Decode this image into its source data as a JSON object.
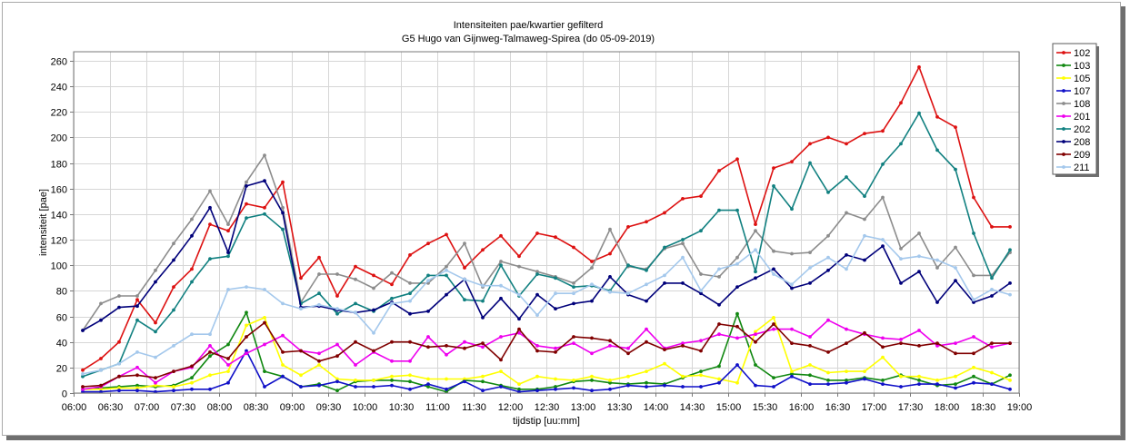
{
  "chart_data": {
    "type": "line",
    "title": "Intensiteiten pae/kwartier gefilterd",
    "subtitle": "G5 Hugo van Gijnweg-Talmaweg-Spirea (do 05-09-2019)",
    "xlabel": "tijdstip [uu:mm]",
    "ylabel": "intensiteit [pae]",
    "xlim": [
      "06:00",
      "19:00"
    ],
    "ylim": [
      0,
      267
    ],
    "x_ticks": [
      "06:00",
      "06:30",
      "07:00",
      "07:30",
      "08:00",
      "08:30",
      "09:00",
      "09:30",
      "10:00",
      "10:30",
      "11:00",
      "11:30",
      "12:00",
      "12:30",
      "13:00",
      "13:30",
      "14:00",
      "14:30",
      "15:00",
      "15:30",
      "16:00",
      "16:30",
      "17:00",
      "17:30",
      "18:00",
      "18:30",
      "19:00"
    ],
    "y_ticks": [
      0,
      20,
      40,
      60,
      80,
      100,
      120,
      140,
      160,
      180,
      200,
      220,
      240,
      260
    ],
    "grid": true,
    "legend": "right",
    "x": [
      "06:07:30",
      "06:22:30",
      "06:37:30",
      "06:52:30",
      "07:07:30",
      "07:22:30",
      "07:37:30",
      "07:52:30",
      "08:07:30",
      "08:22:30",
      "08:37:30",
      "08:52:30",
      "09:07:30",
      "09:22:30",
      "09:37:30",
      "09:52:30",
      "10:07:30",
      "10:22:30",
      "10:37:30",
      "10:52:30",
      "11:07:30",
      "11:22:30",
      "11:37:30",
      "11:52:30",
      "12:07:30",
      "12:22:30",
      "12:37:30",
      "12:52:30",
      "13:07:30",
      "13:22:30",
      "13:37:30",
      "13:52:30",
      "14:07:30",
      "14:22:30",
      "14:37:30",
      "14:52:30",
      "15:07:30",
      "15:22:30",
      "15:37:30",
      "15:52:30",
      "16:07:30",
      "16:22:30",
      "16:37:30",
      "16:52:30",
      "17:07:30",
      "17:22:30",
      "17:37:30",
      "17:52:30",
      "18:07:30",
      "18:22:30",
      "18:37:30",
      "18:52:30"
    ],
    "series": [
      {
        "name": "102",
        "color": "#dd1111",
        "values": [
          18,
          27,
          40,
          73,
          55,
          83,
          97,
          132,
          127,
          148,
          145,
          165,
          90,
          106,
          76,
          99,
          92,
          85,
          108,
          117,
          124,
          98,
          112,
          123,
          107,
          125,
          122,
          114,
          103,
          109,
          130,
          134,
          141,
          152,
          154,
          174,
          183,
          132,
          176,
          181,
          195,
          200,
          195,
          203,
          205,
          227,
          255,
          216,
          208,
          153,
          130,
          130
        ]
      },
      {
        "name": "103",
        "color": "#118811",
        "values": [
          3,
          4,
          5,
          6,
          5,
          6,
          12,
          29,
          38,
          63,
          17,
          13,
          5,
          7,
          2,
          9,
          10,
          10,
          9,
          5,
          1,
          10,
          9,
          6,
          3,
          3,
          5,
          9,
          10,
          8,
          7,
          8,
          7,
          12,
          17,
          21,
          62,
          22,
          12,
          15,
          14,
          10,
          10,
          12,
          10,
          14,
          10,
          6,
          7,
          13,
          7,
          14
        ]
      },
      {
        "name": "105",
        "color": "#ffff00",
        "values": [
          3,
          3,
          4,
          4,
          6,
          5,
          8,
          14,
          17,
          53,
          59,
          22,
          14,
          22,
          11,
          10,
          10,
          13,
          14,
          11,
          11,
          11,
          13,
          17,
          7,
          13,
          11,
          10,
          13,
          10,
          13,
          17,
          23,
          13,
          14,
          11,
          8,
          48,
          59,
          17,
          22,
          16,
          17,
          17,
          28,
          13,
          13,
          10,
          13,
          20,
          16,
          10
        ]
      },
      {
        "name": "107",
        "color": "#1010c8",
        "values": [
          1,
          1,
          2,
          2,
          1,
          2,
          3,
          3,
          8,
          33,
          5,
          13,
          5,
          6,
          9,
          5,
          5,
          6,
          3,
          7,
          3,
          9,
          2,
          5,
          1,
          2,
          3,
          4,
          2,
          3,
          6,
          5,
          6,
          5,
          5,
          8,
          22,
          6,
          5,
          13,
          7,
          7,
          8,
          11,
          7,
          5,
          7,
          7,
          4,
          8,
          7,
          3
        ]
      },
      {
        "name": "108",
        "color": "#8c8c8c",
        "values": [
          49,
          70,
          76,
          76,
          96,
          117,
          136,
          158,
          132,
          165,
          186,
          145,
          71,
          93,
          93,
          89,
          82,
          94,
          86,
          86,
          99,
          117,
          83,
          103,
          99,
          95,
          91,
          86,
          98,
          128,
          99,
          97,
          113,
          117,
          93,
          91,
          106,
          127,
          111,
          109,
          110,
          123,
          141,
          136,
          153,
          113,
          125,
          98,
          114,
          92,
          92,
          110
        ]
      },
      {
        "name": "201",
        "color": "#ee00ee",
        "values": [
          3,
          5,
          13,
          20,
          8,
          17,
          20,
          37,
          22,
          31,
          38,
          45,
          33,
          31,
          38,
          22,
          32,
          25,
          25,
          44,
          30,
          40,
          36,
          44,
          47,
          37,
          35,
          39,
          31,
          37,
          35,
          50,
          35,
          39,
          41,
          46,
          43,
          46,
          50,
          50,
          44,
          57,
          50,
          46,
          43,
          42,
          49,
          37,
          39,
          44,
          36,
          39
        ]
      },
      {
        "name": "202",
        "color": "#118080",
        "values": [
          13,
          18,
          23,
          57,
          48,
          65,
          87,
          105,
          107,
          137,
          140,
          128,
          70,
          78,
          62,
          70,
          64,
          74,
          78,
          92,
          92,
          73,
          72,
          100,
          76,
          93,
          90,
          83,
          84,
          80,
          100,
          96,
          114,
          120,
          127,
          143,
          143,
          95,
          162,
          144,
          180,
          157,
          169,
          154,
          179,
          195,
          219,
          190,
          175,
          125,
          90,
          112
        ]
      },
      {
        "name": "208",
        "color": "#00007a",
        "values": [
          49,
          57,
          67,
          68,
          87,
          104,
          123,
          145,
          110,
          162,
          166,
          141,
          67,
          68,
          65,
          63,
          65,
          71,
          62,
          64,
          77,
          89,
          59,
          74,
          58,
          77,
          66,
          70,
          72,
          91,
          77,
          72,
          86,
          86,
          78,
          69,
          83,
          90,
          97,
          82,
          86,
          96,
          108,
          104,
          115,
          86,
          95,
          71,
          88,
          71,
          76,
          86
        ]
      },
      {
        "name": "209",
        "color": "#800000",
        "values": [
          5,
          6,
          13,
          14,
          12,
          17,
          21,
          32,
          27,
          44,
          55,
          32,
          33,
          25,
          29,
          40,
          33,
          40,
          40,
          36,
          37,
          35,
          39,
          26,
          50,
          33,
          32,
          44,
          43,
          41,
          31,
          40,
          34,
          37,
          33,
          54,
          52,
          40,
          54,
          39,
          37,
          32,
          39,
          47,
          36,
          39,
          37,
          39,
          31,
          31,
          39,
          39
        ]
      },
      {
        "name": "211",
        "color": "#a4c8ec",
        "values": [
          15,
          18,
          23,
          32,
          28,
          37,
          46,
          46,
          81,
          83,
          81,
          70,
          66,
          69,
          66,
          63,
          47,
          70,
          72,
          88,
          96,
          89,
          84,
          84,
          77,
          61,
          78,
          78,
          85,
          79,
          78,
          85,
          92,
          106,
          80,
          97,
          101,
          112,
          93,
          85,
          98,
          106,
          97,
          123,
          120,
          105,
          107,
          104,
          98,
          73,
          81,
          77
        ]
      }
    ]
  }
}
